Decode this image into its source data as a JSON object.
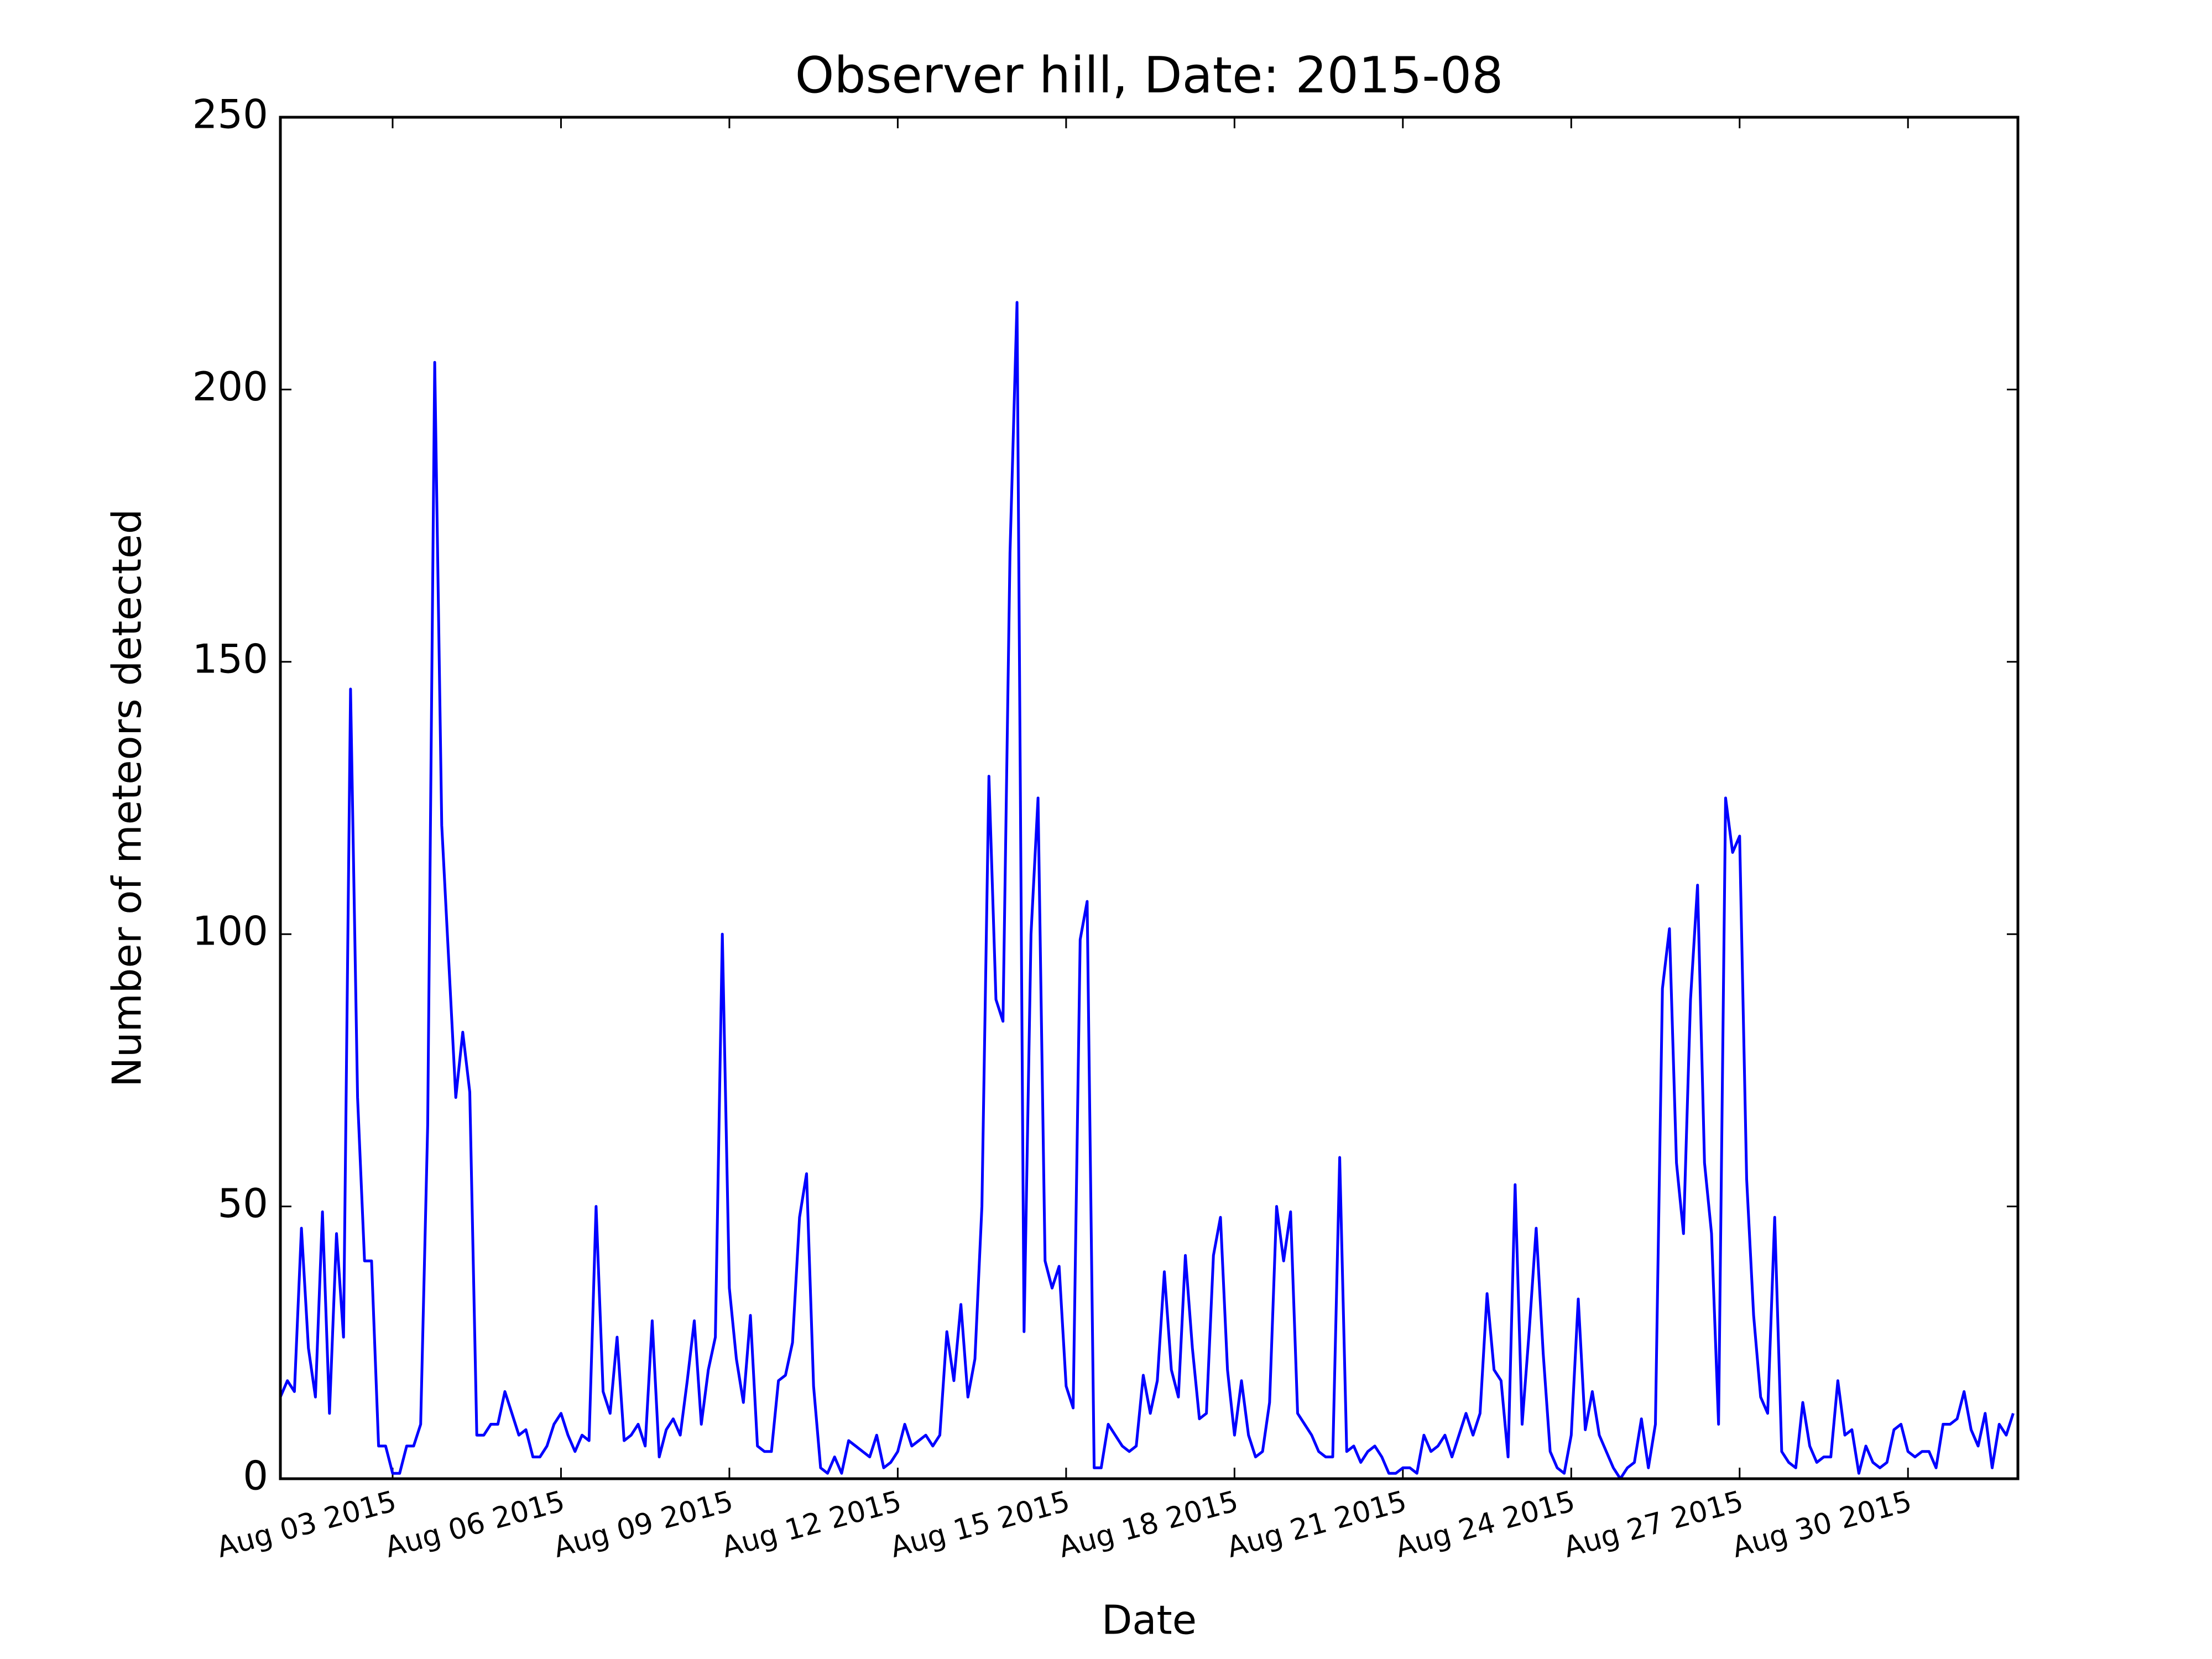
{
  "chart_data": {
    "type": "line",
    "title": "Observer hill, Date: 2015-08",
    "xlabel": "Date",
    "ylabel": "Number of meteors detected",
    "color": "#0000ff",
    "x": [
      "2015-08-01 00:00",
      "2015-08-01 03:00",
      "2015-08-01 06:00",
      "2015-08-01 09:00",
      "2015-08-01 12:00",
      "2015-08-01 15:00",
      "2015-08-01 18:00",
      "2015-08-01 21:00",
      "2015-08-02 00:00",
      "2015-08-02 03:00",
      "2015-08-02 06:00",
      "2015-08-02 09:00",
      "2015-08-02 12:00",
      "2015-08-02 15:00",
      "2015-08-02 18:00",
      "2015-08-02 21:00",
      "2015-08-03 00:00",
      "2015-08-03 03:00",
      "2015-08-03 06:00",
      "2015-08-03 09:00",
      "2015-08-03 12:00",
      "2015-08-03 15:00",
      "2015-08-03 18:00",
      "2015-08-03 21:00",
      "2015-08-04 00:00",
      "2015-08-04 03:00",
      "2015-08-04 06:00",
      "2015-08-04 09:00",
      "2015-08-04 12:00",
      "2015-08-04 15:00",
      "2015-08-04 18:00",
      "2015-08-04 21:00",
      "2015-08-05 00:00",
      "2015-08-05 03:00",
      "2015-08-05 06:00",
      "2015-08-05 09:00",
      "2015-08-05 12:00",
      "2015-08-05 15:00",
      "2015-08-05 18:00",
      "2015-08-05 21:00",
      "2015-08-06 00:00",
      "2015-08-06 03:00",
      "2015-08-06 06:00",
      "2015-08-06 09:00",
      "2015-08-06 12:00",
      "2015-08-06 15:00",
      "2015-08-06 18:00",
      "2015-08-06 21:00",
      "2015-08-07 00:00",
      "2015-08-07 03:00",
      "2015-08-07 06:00",
      "2015-08-07 09:00",
      "2015-08-07 12:00",
      "2015-08-07 15:00",
      "2015-08-07 18:00",
      "2015-08-07 21:00",
      "2015-08-08 00:00",
      "2015-08-08 03:00",
      "2015-08-08 06:00",
      "2015-08-08 09:00",
      "2015-08-08 12:00",
      "2015-08-08 15:00",
      "2015-08-08 18:00",
      "2015-08-08 21:00",
      "2015-08-09 00:00",
      "2015-08-09 03:00",
      "2015-08-09 06:00",
      "2015-08-09 09:00",
      "2015-08-09 12:00",
      "2015-08-09 15:00",
      "2015-08-09 18:00",
      "2015-08-09 21:00",
      "2015-08-10 00:00",
      "2015-08-10 03:00",
      "2015-08-10 06:00",
      "2015-08-10 09:00",
      "2015-08-10 12:00",
      "2015-08-10 15:00",
      "2015-08-10 18:00",
      "2015-08-10 21:00",
      "2015-08-11 00:00",
      "2015-08-11 03:00",
      "2015-08-11 06:00",
      "2015-08-11 09:00",
      "2015-08-11 12:00",
      "2015-08-11 15:00",
      "2015-08-11 18:00",
      "2015-08-11 21:00",
      "2015-08-12 00:00",
      "2015-08-12 03:00",
      "2015-08-12 06:00",
      "2015-08-12 09:00",
      "2015-08-12 12:00",
      "2015-08-12 15:00",
      "2015-08-12 18:00",
      "2015-08-12 21:00",
      "2015-08-13 00:00",
      "2015-08-13 03:00",
      "2015-08-13 06:00",
      "2015-08-13 09:00",
      "2015-08-13 12:00",
      "2015-08-13 15:00",
      "2015-08-13 18:00",
      "2015-08-13 21:00",
      "2015-08-14 00:00",
      "2015-08-14 03:00",
      "2015-08-14 06:00",
      "2015-08-14 09:00",
      "2015-08-14 12:00",
      "2015-08-14 15:00",
      "2015-08-14 18:00",
      "2015-08-14 21:00",
      "2015-08-15 00:00",
      "2015-08-15 03:00",
      "2015-08-15 06:00",
      "2015-08-15 09:00",
      "2015-08-15 12:00",
      "2015-08-15 15:00",
      "2015-08-15 18:00",
      "2015-08-15 21:00",
      "2015-08-16 00:00",
      "2015-08-16 03:00",
      "2015-08-16 06:00",
      "2015-08-16 09:00",
      "2015-08-16 12:00",
      "2015-08-16 15:00",
      "2015-08-16 18:00",
      "2015-08-16 21:00",
      "2015-08-17 00:00",
      "2015-08-17 03:00",
      "2015-08-17 06:00",
      "2015-08-17 09:00",
      "2015-08-17 12:00",
      "2015-08-17 15:00",
      "2015-08-17 18:00",
      "2015-08-17 21:00",
      "2015-08-18 00:00",
      "2015-08-18 03:00",
      "2015-08-18 06:00",
      "2015-08-18 09:00",
      "2015-08-18 12:00",
      "2015-08-18 15:00",
      "2015-08-18 18:00",
      "2015-08-18 21:00",
      "2015-08-19 00:00",
      "2015-08-19 03:00",
      "2015-08-19 06:00",
      "2015-08-19 09:00",
      "2015-08-19 12:00",
      "2015-08-19 15:00",
      "2015-08-19 18:00",
      "2015-08-19 21:00",
      "2015-08-20 00:00",
      "2015-08-20 03:00",
      "2015-08-20 06:00",
      "2015-08-20 09:00",
      "2015-08-20 12:00",
      "2015-08-20 15:00",
      "2015-08-20 18:00",
      "2015-08-20 21:00",
      "2015-08-21 00:00",
      "2015-08-21 03:00",
      "2015-08-21 06:00",
      "2015-08-21 09:00",
      "2015-08-21 12:00",
      "2015-08-21 15:00",
      "2015-08-21 18:00",
      "2015-08-21 21:00",
      "2015-08-22 00:00",
      "2015-08-22 03:00",
      "2015-08-22 06:00",
      "2015-08-22 09:00",
      "2015-08-22 12:00",
      "2015-08-22 15:00",
      "2015-08-22 18:00",
      "2015-08-22 21:00",
      "2015-08-23 00:00",
      "2015-08-23 03:00",
      "2015-08-23 06:00",
      "2015-08-23 09:00",
      "2015-08-23 12:00",
      "2015-08-23 15:00",
      "2015-08-23 18:00",
      "2015-08-23 21:00",
      "2015-08-24 00:00",
      "2015-08-24 03:00",
      "2015-08-24 06:00",
      "2015-08-24 09:00",
      "2015-08-24 12:00",
      "2015-08-24 15:00",
      "2015-08-24 18:00",
      "2015-08-24 21:00",
      "2015-08-25 00:00",
      "2015-08-25 03:00",
      "2015-08-25 06:00",
      "2015-08-25 09:00",
      "2015-08-25 12:00",
      "2015-08-25 15:00",
      "2015-08-25 18:00",
      "2015-08-25 21:00",
      "2015-08-26 00:00",
      "2015-08-26 03:00",
      "2015-08-26 06:00",
      "2015-08-26 09:00",
      "2015-08-26 12:00",
      "2015-08-26 15:00",
      "2015-08-26 18:00",
      "2015-08-26 21:00",
      "2015-08-27 00:00",
      "2015-08-27 03:00",
      "2015-08-27 06:00",
      "2015-08-27 09:00",
      "2015-08-27 12:00",
      "2015-08-27 15:00",
      "2015-08-27 18:00",
      "2015-08-27 21:00",
      "2015-08-28 00:00",
      "2015-08-28 03:00",
      "2015-08-28 06:00",
      "2015-08-28 09:00",
      "2015-08-28 12:00",
      "2015-08-28 15:00",
      "2015-08-28 18:00",
      "2015-08-28 21:00",
      "2015-08-29 00:00",
      "2015-08-29 03:00",
      "2015-08-29 06:00",
      "2015-08-29 09:00",
      "2015-08-29 12:00",
      "2015-08-29 15:00",
      "2015-08-29 18:00",
      "2015-08-29 21:00",
      "2015-08-30 00:00",
      "2015-08-30 03:00",
      "2015-08-30 06:00",
      "2015-08-30 09:00",
      "2015-08-30 12:00",
      "2015-08-30 15:00",
      "2015-08-30 18:00",
      "2015-08-30 21:00",
      "2015-08-31 00:00",
      "2015-08-31 03:00",
      "2015-08-31 06:00",
      "2015-08-31 09:00",
      "2015-08-31 12:00",
      "2015-08-31 15:00",
      "2015-08-31 18:00",
      "2015-08-31 21:00"
    ],
    "values": [
      15,
      18,
      16,
      46,
      24,
      15,
      49,
      12,
      45,
      26,
      145,
      70,
      40,
      40,
      6,
      6,
      1,
      1,
      6,
      6,
      10,
      65,
      205,
      120,
      95,
      70,
      82,
      71,
      8,
      8,
      10,
      10,
      16,
      12,
      8,
      9,
      4,
      4,
      6,
      10,
      12,
      8,
      5,
      8,
      7,
      50,
      16,
      12,
      26,
      7,
      8,
      10,
      6,
      29,
      4,
      9,
      11,
      8,
      18,
      29,
      10,
      20,
      26,
      100,
      35,
      22,
      14,
      30,
      6,
      5,
      5,
      18,
      19,
      25,
      48,
      56,
      17,
      2,
      1,
      4,
      1,
      7,
      6,
      5,
      4,
      8,
      2,
      3,
      5,
      10,
      6,
      7,
      8,
      6,
      8,
      27,
      18,
      32,
      15,
      22,
      50,
      129,
      88,
      84,
      170,
      216,
      27,
      100,
      125,
      40,
      35,
      39,
      17,
      13,
      99,
      106,
      2,
      2,
      10,
      8,
      6,
      5,
      6,
      19,
      12,
      18,
      38,
      20,
      15,
      41,
      24,
      11,
      12,
      41,
      48,
      20,
      8,
      18,
      8,
      4,
      5,
      14,
      50,
      40,
      49,
      12,
      10,
      8,
      5,
      4,
      4,
      59,
      5,
      6,
      3,
      5,
      6,
      4,
      1,
      1,
      2,
      2,
      1,
      8,
      5,
      6,
      8,
      4,
      8,
      12,
      8,
      12,
      34,
      20,
      18,
      4,
      54,
      10,
      27,
      46,
      23,
      5,
      2,
      1,
      8,
      33,
      9,
      16,
      8,
      5,
      2,
      0,
      2,
      3,
      11,
      2,
      10,
      90,
      101,
      58,
      45,
      88,
      109,
      58,
      45,
      10,
      125,
      115,
      118,
      55,
      30,
      15,
      12,
      48,
      5,
      3,
      2,
      14,
      6,
      3,
      4,
      4,
      18,
      8,
      9,
      1,
      6,
      3,
      2,
      3,
      9,
      10,
      5,
      4,
      5,
      5,
      2,
      10,
      10,
      11,
      16,
      9,
      6,
      12,
      2,
      10,
      8,
      12
    ],
    "xlim": [
      "2015-08-01 00:00",
      "2015-08-31 23:00"
    ],
    "xticks": [
      {
        "value": "2015-08-03",
        "label": "Aug 03 2015"
      },
      {
        "value": "2015-08-06",
        "label": "Aug 06 2015"
      },
      {
        "value": "2015-08-09",
        "label": "Aug 09 2015"
      },
      {
        "value": "2015-08-12",
        "label": "Aug 12 2015"
      },
      {
        "value": "2015-08-15",
        "label": "Aug 15 2015"
      },
      {
        "value": "2015-08-18",
        "label": "Aug 18 2015"
      },
      {
        "value": "2015-08-21",
        "label": "Aug 21 2015"
      },
      {
        "value": "2015-08-24",
        "label": "Aug 24 2015"
      },
      {
        "value": "2015-08-27",
        "label": "Aug 27 2015"
      },
      {
        "value": "2015-08-30",
        "label": "Aug 30 2015"
      }
    ],
    "ylim": [
      0,
      250
    ],
    "yticks": [
      0,
      50,
      100,
      150,
      200,
      250
    ],
    "grid": false
  }
}
